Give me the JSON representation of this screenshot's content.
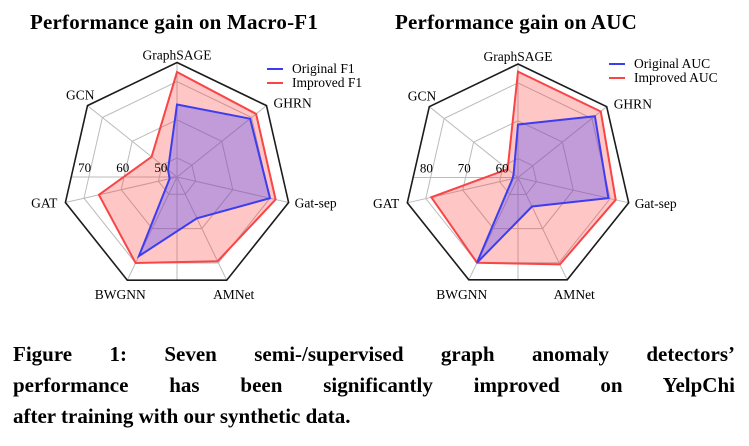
{
  "colors": {
    "grid": "#bbbbbb",
    "frame": "#1c1c1c",
    "original_blue": "#3d3df0",
    "improved_red": "#f84545"
  },
  "chart_data": [
    {
      "type": "radar",
      "title": "Performance gain on Macro-F1",
      "categories": [
        "GraphSAGE",
        "GHRN",
        "Gat-sep",
        "AMNet",
        "BWGNN",
        "GAT",
        "GCN"
      ],
      "r_min": 45,
      "r_max": 75,
      "ticks": [
        50,
        60,
        70
      ],
      "grid": true,
      "legend_position": "upper-right",
      "series": [
        {
          "name": "Original F1",
          "color": "#3d3df0",
          "fill": "rgba(70,70,255,0.33)",
          "values": [
            64,
            69.5,
            70,
            57,
            68,
            47,
            48
          ]
        },
        {
          "name": "Improved F1",
          "color": "#f84545",
          "fill": "rgba(255,50,50,0.28)",
          "values": [
            72.5,
            71.5,
            71.5,
            69.5,
            70,
            66,
            53.5
          ]
        }
      ]
    },
    {
      "type": "radar",
      "title": "Performance gain on AUC",
      "categories": [
        "GraphSAGE",
        "GHRN",
        "Gat-sep",
        "AMNet",
        "BWGNN",
        "GAT",
        "GCN"
      ],
      "r_min": 55,
      "r_max": 85,
      "ticks": [
        60,
        70,
        80
      ],
      "grid": true,
      "legend_position": "upper-right",
      "series": [
        {
          "name": "Original AUC",
          "color": "#3d3df0",
          "fill": "rgba(70,70,255,0.33)",
          "values": [
            69,
            81,
            79.5,
            63.5,
            80,
            56.5,
            56.5
          ]
        },
        {
          "name": "Improved AUC",
          "color": "#f84545",
          "fill": "rgba(255,50,50,0.28)",
          "values": [
            83,
            83,
            81.5,
            80.5,
            80,
            78.5,
            58.5
          ]
        }
      ]
    }
  ],
  "caption": {
    "lines": [
      "Figure 1: Seven semi-/supervised graph anomaly detectors’",
      "performance has been significantly improved on YelpChi",
      "after training with our synthetic data."
    ]
  }
}
